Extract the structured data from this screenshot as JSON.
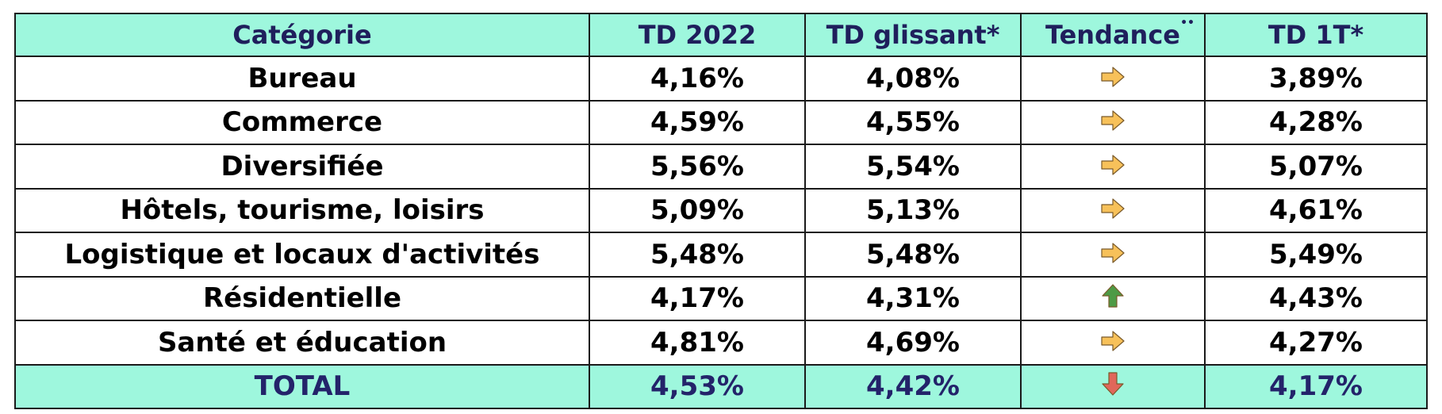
{
  "columns": [
    "Catégorie",
    "TD 2022",
    "TD glissant*",
    "Tendance",
    "TD 1T*"
  ],
  "tendance_marker": "••",
  "rows": [
    {
      "categorie": "Bureau",
      "td2022": "4,16%",
      "glissant": "4,08%",
      "trend": "arrow-right-icon",
      "td1t": "3,89%"
    },
    {
      "categorie": "Commerce",
      "td2022": "4,59%",
      "glissant": "4,55%",
      "trend": "arrow-right-icon",
      "td1t": "4,28%"
    },
    {
      "categorie": "Diversifiée",
      "td2022": "5,56%",
      "glissant": "5,54%",
      "trend": "arrow-right-icon",
      "td1t": "5,07%"
    },
    {
      "categorie": "Hôtels, tourisme, loisirs",
      "td2022": "5,09%",
      "glissant": "5,13%",
      "trend": "arrow-right-icon",
      "td1t": "4,61%"
    },
    {
      "categorie": "Logistique et locaux d'activités",
      "td2022": "5,48%",
      "glissant": "5,48%",
      "trend": "arrow-right-icon",
      "td1t": "5,49%"
    },
    {
      "categorie": "Résidentielle",
      "td2022": "4,17%",
      "glissant": "4,31%",
      "trend": "arrow-up-icon",
      "td1t": "4,43%"
    },
    {
      "categorie": "Santé et éducation",
      "td2022": "4,81%",
      "glissant": "4,69%",
      "trend": "arrow-right-icon",
      "td1t": "4,27%"
    }
  ],
  "total": {
    "categorie": "TOTAL",
    "td2022": "4,53%",
    "glissant": "4,42%",
    "trend": "arrow-down-icon",
    "td1t": "4,17%"
  },
  "colors": {
    "header_bg": "#9ef7dd",
    "header_text": "#1f1f5c",
    "arrow_right": "#f7c15a",
    "arrow_up": "#4e9a45",
    "arrow_down": "#e0675a"
  }
}
